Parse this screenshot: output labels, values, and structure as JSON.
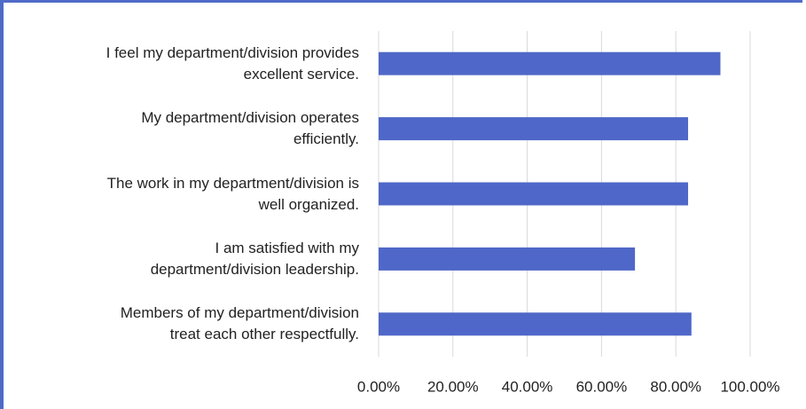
{
  "chart_data": {
    "type": "bar",
    "orientation": "horizontal",
    "categories": [
      "I feel my department/division provides\nexcellent service.",
      "My department/division operates\nefficiently.",
      "The work in my department/division is\nwell organized.",
      "I am satisfied with my\ndepartment/division leadership.",
      "Members of my department/division\ntreat each other respectfully."
    ],
    "values": [
      92,
      83.3,
      83.3,
      69,
      84.2
    ],
    "color": "#4f67c8",
    "xlim": [
      0,
      100
    ],
    "xticks": [
      {
        "value": 0,
        "label": "0.00%"
      },
      {
        "value": 20,
        "label": "20.00%"
      },
      {
        "value": 40,
        "label": "40.00%"
      },
      {
        "value": 60,
        "label": "60.00%"
      },
      {
        "value": 80,
        "label": "80.00%"
      },
      {
        "value": 100,
        "label": "100.00%"
      }
    ],
    "grid": true
  }
}
